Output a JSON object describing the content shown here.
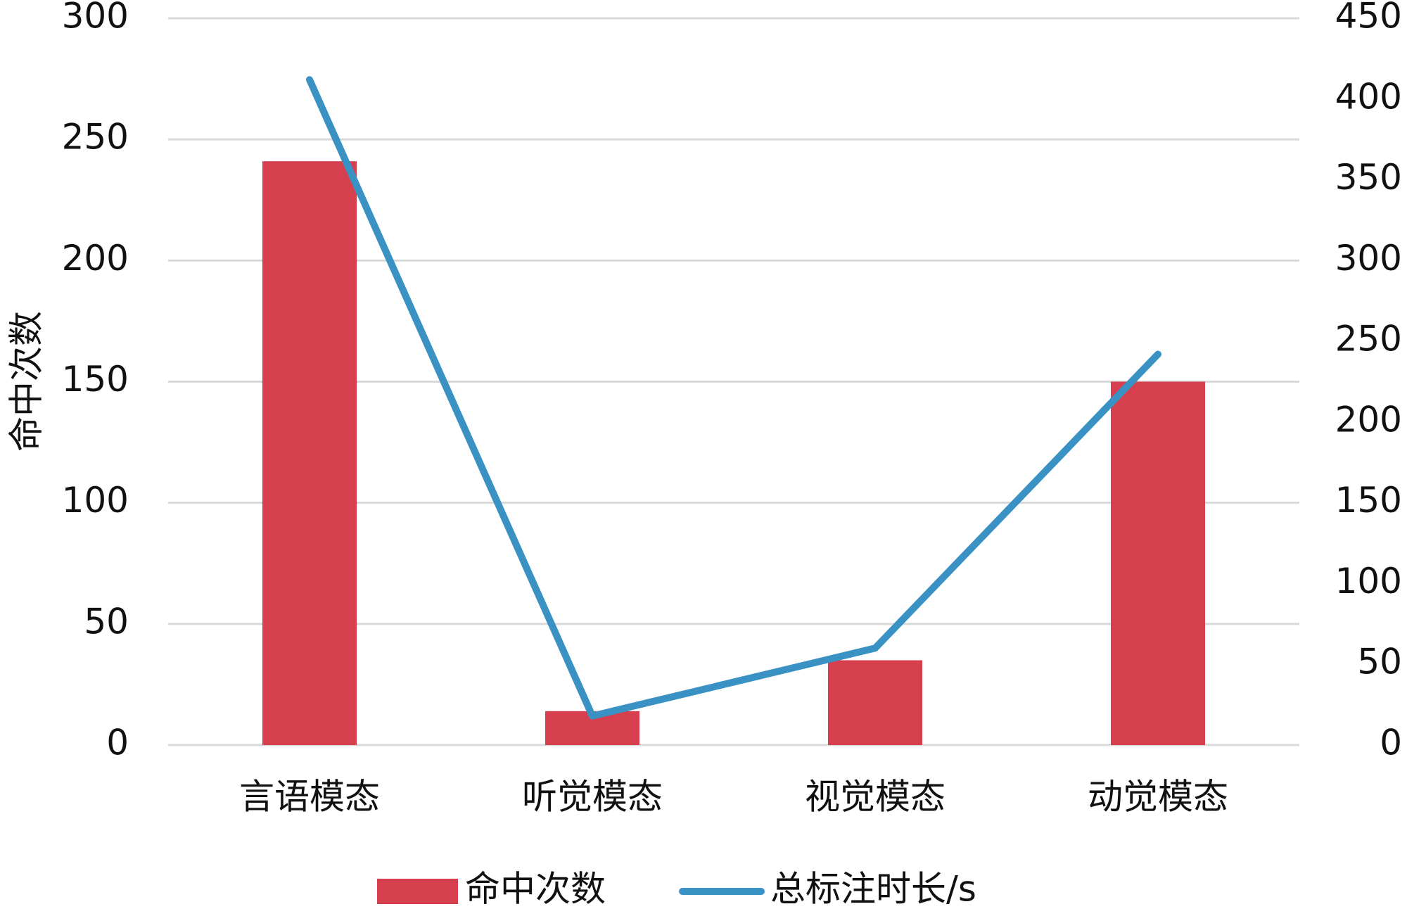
{
  "chart_data": {
    "type": "combo",
    "y_label": "命中次数",
    "categories": [
      "言语模态",
      "听觉模态",
      "视觉模态",
      "动觉模态"
    ],
    "series": [
      {
        "name": "命中次数",
        "type": "bar",
        "color": "#d6404e",
        "values": [
          241,
          14,
          35,
          150
        ]
      },
      {
        "name": "总标注时长/s",
        "type": "line",
        "axis": "y2",
        "color": "#3a92c4",
        "values": [
          412,
          18,
          60,
          242
        ]
      }
    ],
    "ylim": [
      0,
      300
    ],
    "yticks": [
      0,
      50,
      100,
      150,
      200,
      250,
      300
    ],
    "y2lim": [
      0,
      450
    ],
    "y2ticks": [
      0,
      50,
      100,
      150,
      200,
      250,
      300,
      350,
      400,
      450
    ],
    "grid": true
  }
}
